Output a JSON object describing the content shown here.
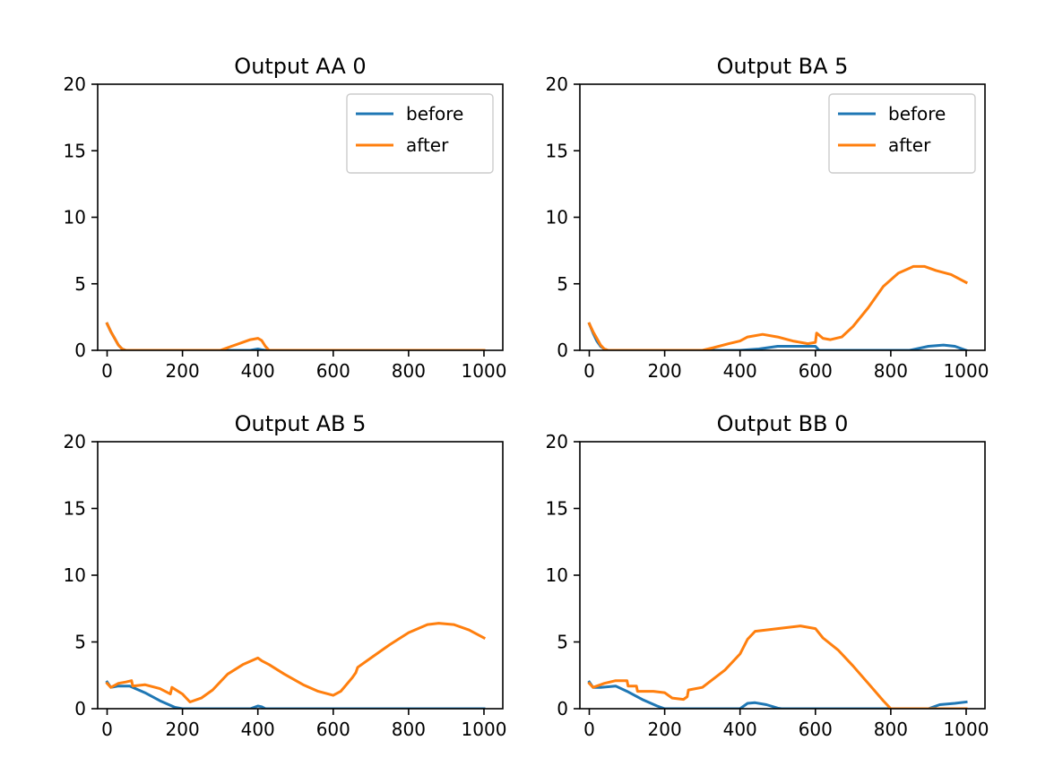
{
  "colors": {
    "before": "#1f77b4",
    "after": "#ff7f0e"
  },
  "chart_data": [
    {
      "type": "line",
      "title": "Output AA 0",
      "xlabel": "",
      "ylabel": "",
      "xlim": [
        -25,
        1050
      ],
      "ylim": [
        0,
        20
      ],
      "x_ticks": [
        "0",
        "200",
        "400",
        "600",
        "800",
        "1000"
      ],
      "y_ticks": [
        "0",
        "5",
        "10",
        "15",
        "20"
      ],
      "legend": {
        "show": true,
        "position": "top-right"
      },
      "series": [
        {
          "name": "before",
          "color": "#1f77b4",
          "x": [
            0,
            10,
            20,
            30,
            40,
            50,
            200,
            300,
            380,
            400,
            410,
            420,
            1000
          ],
          "y": [
            2.0,
            1.4,
            0.9,
            0.4,
            0.1,
            0,
            0,
            0,
            0,
            0.1,
            0.05,
            0,
            0
          ]
        },
        {
          "name": "after",
          "color": "#ff7f0e",
          "x": [
            0,
            10,
            20,
            30,
            40,
            50,
            200,
            300,
            330,
            360,
            380,
            400,
            410,
            420,
            430,
            1000
          ],
          "y": [
            2.0,
            1.4,
            0.9,
            0.4,
            0.1,
            0,
            0,
            0,
            0.3,
            0.6,
            0.8,
            0.9,
            0.75,
            0.3,
            0,
            0
          ]
        }
      ]
    },
    {
      "type": "line",
      "title": "Output BA 5",
      "xlabel": "",
      "ylabel": "",
      "xlim": [
        -25,
        1050
      ],
      "ylim": [
        0,
        20
      ],
      "x_ticks": [
        "0",
        "200",
        "400",
        "600",
        "800",
        "1000"
      ],
      "y_ticks": [
        "0",
        "5",
        "10",
        "15",
        "20"
      ],
      "legend": {
        "show": true,
        "position": "top-right"
      },
      "series": [
        {
          "name": "before",
          "color": "#1f77b4",
          "x": [
            0,
            10,
            20,
            30,
            40,
            50,
            200,
            400,
            450,
            500,
            550,
            600,
            610,
            850,
            900,
            940,
            970,
            1000
          ],
          "y": [
            2.0,
            1.3,
            0.7,
            0.3,
            0.1,
            0,
            0,
            0,
            0.1,
            0.3,
            0.3,
            0.3,
            0,
            0,
            0.3,
            0.4,
            0.3,
            0
          ]
        },
        {
          "name": "after",
          "color": "#ff7f0e",
          "x": [
            0,
            10,
            20,
            30,
            40,
            50,
            200,
            300,
            330,
            370,
            400,
            420,
            460,
            500,
            540,
            580,
            600,
            603,
            620,
            640,
            670,
            700,
            740,
            780,
            820,
            860,
            890,
            920,
            960,
            1000
          ],
          "y": [
            2.0,
            1.4,
            0.9,
            0.4,
            0.1,
            0,
            0,
            0,
            0.2,
            0.5,
            0.7,
            1.0,
            1.2,
            1.0,
            0.7,
            0.5,
            0.6,
            1.3,
            0.9,
            0.8,
            1.0,
            1.8,
            3.2,
            4.8,
            5.8,
            6.3,
            6.3,
            6.0,
            5.7,
            5.1
          ]
        }
      ]
    },
    {
      "type": "line",
      "title": "Output AB 5",
      "xlabel": "",
      "ylabel": "",
      "xlim": [
        -25,
        1050
      ],
      "ylim": [
        0,
        20
      ],
      "x_ticks": [
        "0",
        "200",
        "400",
        "600",
        "800",
        "1000"
      ],
      "y_ticks": [
        "0",
        "5",
        "10",
        "15",
        "20"
      ],
      "legend": {
        "show": false,
        "position": ""
      },
      "series": [
        {
          "name": "before",
          "color": "#1f77b4",
          "x": [
            0,
            10,
            30,
            60,
            100,
            140,
            180,
            200,
            380,
            400,
            410,
            420,
            1000
          ],
          "y": [
            2.0,
            1.6,
            1.7,
            1.7,
            1.2,
            0.6,
            0.1,
            0,
            0,
            0.2,
            0.15,
            0,
            0
          ]
        },
        {
          "name": "after",
          "color": "#ff7f0e",
          "x": [
            0,
            10,
            30,
            50,
            65,
            68,
            100,
            140,
            168,
            172,
            200,
            210,
            220,
            250,
            280,
            320,
            360,
            400,
            410,
            430,
            470,
            520,
            560,
            600,
            620,
            650,
            660,
            665,
            700,
            750,
            800,
            850,
            880,
            920,
            960,
            1000
          ],
          "y": [
            1.9,
            1.6,
            1.9,
            2.0,
            2.1,
            1.7,
            1.8,
            1.5,
            1.1,
            1.6,
            1.1,
            0.8,
            0.5,
            0.8,
            1.4,
            2.6,
            3.3,
            3.8,
            3.6,
            3.3,
            2.6,
            1.8,
            1.3,
            1.0,
            1.3,
            2.3,
            2.7,
            3.1,
            3.8,
            4.8,
            5.7,
            6.3,
            6.4,
            6.3,
            5.9,
            5.3
          ]
        }
      ]
    },
    {
      "type": "line",
      "title": "Output BB 0",
      "xlabel": "",
      "ylabel": "",
      "xlim": [
        -25,
        1050
      ],
      "ylim": [
        0,
        20
      ],
      "x_ticks": [
        "0",
        "200",
        "400",
        "600",
        "800",
        "1000"
      ],
      "y_ticks": [
        "0",
        "5",
        "10",
        "15",
        "20"
      ],
      "legend": {
        "show": false,
        "position": ""
      },
      "series": [
        {
          "name": "before",
          "color": "#1f77b4",
          "x": [
            0,
            10,
            30,
            70,
            100,
            140,
            180,
            200,
            400,
            420,
            440,
            470,
            500,
            510,
            900,
            930,
            970,
            1000
          ],
          "y": [
            2.0,
            1.6,
            1.6,
            1.7,
            1.3,
            0.7,
            0.2,
            0,
            0,
            0.4,
            0.45,
            0.3,
            0.05,
            0,
            0,
            0.3,
            0.4,
            0.5
          ]
        },
        {
          "name": "after",
          "color": "#ff7f0e",
          "x": [
            0,
            10,
            40,
            70,
            100,
            103,
            125,
            128,
            170,
            200,
            220,
            250,
            260,
            263,
            300,
            360,
            400,
            420,
            440,
            500,
            560,
            600,
            620,
            660,
            700,
            740,
            780,
            800,
            1000
          ],
          "y": [
            1.9,
            1.6,
            1.9,
            2.1,
            2.1,
            1.7,
            1.7,
            1.3,
            1.3,
            1.2,
            0.8,
            0.7,
            0.9,
            1.4,
            1.6,
            2.9,
            4.1,
            5.2,
            5.8,
            6.0,
            6.2,
            6.0,
            5.3,
            4.4,
            3.2,
            1.9,
            0.6,
            0,
            0
          ]
        }
      ]
    }
  ]
}
